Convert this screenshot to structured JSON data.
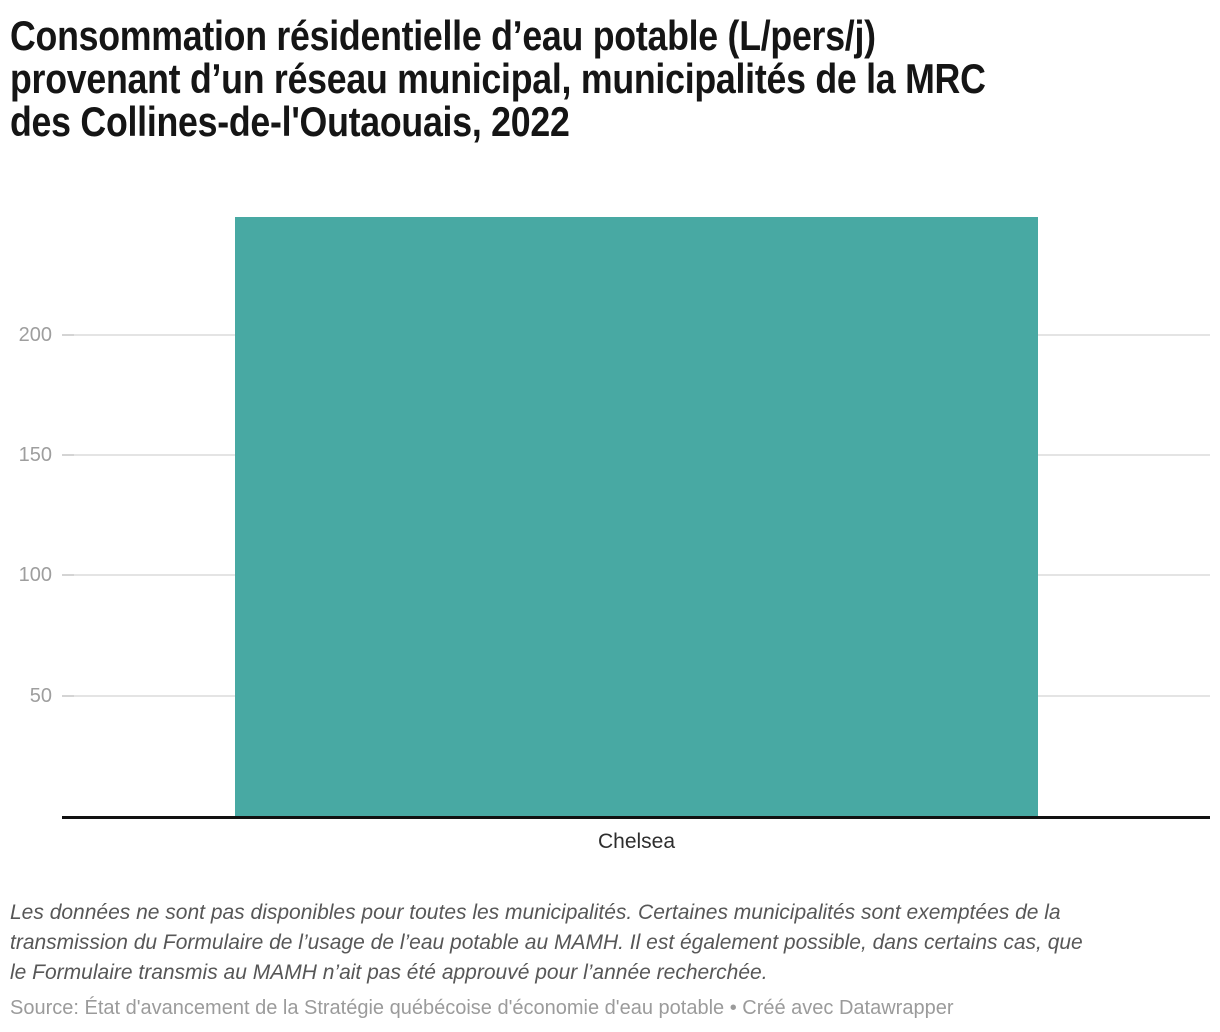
{
  "title": {
    "lines": [
      "Consommation résidentielle d’eau potable (L/pers/j)",
      "provenant d’un réseau municipal, municipalités de la MRC",
      "des Collines-de-l'Outaouais, 2022"
    ]
  },
  "chart_data": {
    "type": "bar",
    "title": "Consommation résidentielle d’eau potable (L/pers/j) provenant d’un réseau municipal, municipalités de la MRC des Collines-de-l'Outaouais, 2022",
    "categories": [
      "Chelsea"
    ],
    "values": [
      249
    ],
    "xlabel": "",
    "ylabel": "",
    "ylim": [
      0,
      249
    ],
    "y_ticks": [
      50,
      100,
      150,
      200
    ],
    "grid": "horizontal",
    "legend": "none",
    "colors": {
      "bar": "#48a9a3",
      "gridline": "#e4e4e4",
      "tick": "#d4d4d4",
      "axis_line": "#111111",
      "tick_label": "#9e9e9e",
      "category_label": "#2e2e2e"
    }
  },
  "footnote": {
    "lines": [
      "Les données ne sont pas disponibles pour toutes les municipalités. Certaines municipalités sont exemptées de la",
      "transmission du Formulaire de l’usage de l’eau potable au MAMH. Il est également possible, dans certains cas, que",
      "le Formulaire transmis au MAMH n’ait pas été approuvé pour l’année recherchée."
    ]
  },
  "source": {
    "text": "Source: État d'avancement de la Stratégie québécoise d'économie d'eau potable • Créé avec Datawrapper"
  }
}
